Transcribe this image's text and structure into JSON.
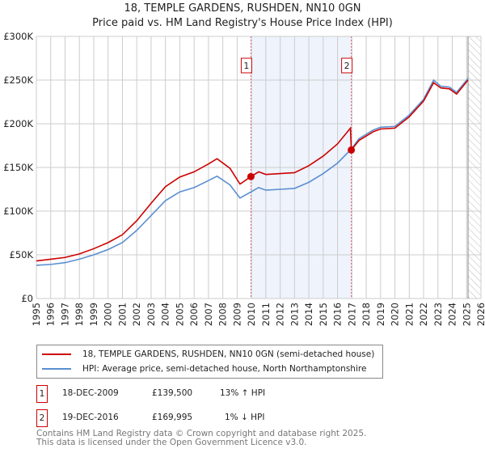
{
  "chart_data": {
    "type": "line",
    "title": "18, TEMPLE GARDENS, RUSHDEN, NN10 0GN",
    "subtitle": "Price paid vs. HM Land Registry's House Price Index (HPI)",
    "xlim": [
      1995,
      2026
    ],
    "ylim": [
      0,
      300000
    ],
    "x_ticks": [
      "1995",
      "1996",
      "1997",
      "1998",
      "1999",
      "2000",
      "2001",
      "2002",
      "2003",
      "2004",
      "2005",
      "2006",
      "2007",
      "2008",
      "2009",
      "2010",
      "2011",
      "2012",
      "2013",
      "2014",
      "2015",
      "2016",
      "2017",
      "2018",
      "2019",
      "2020",
      "2021",
      "2022",
      "2023",
      "2024",
      "2025",
      "2026"
    ],
    "y_ticks": [
      {
        "v": 0,
        "label": "£0"
      },
      {
        "v": 50000,
        "label": "£50K"
      },
      {
        "v": 100000,
        "label": "£100K"
      },
      {
        "v": 150000,
        "label": "£150K"
      },
      {
        "v": 200000,
        "label": "£200K"
      },
      {
        "v": 250000,
        "label": "£250K"
      },
      {
        "v": 300000,
        "label": "£300K"
      }
    ],
    "grid": true,
    "series": [
      {
        "name": "18, TEMPLE GARDENS, RUSHDEN, NN10 0GN (semi-detached house)",
        "color": "#cc0000",
        "x": [
          1995,
          1996,
          1997,
          1998,
          1999,
          2000,
          2001,
          2002,
          2003,
          2004,
          2005,
          2006,
          2007,
          2007.6,
          2008.5,
          2009.2,
          2009.96,
          2010.5,
          2011,
          2012,
          2013,
          2014,
          2015,
          2016,
          2016.9,
          2016.96,
          2017.5,
          2018.5,
          2019,
          2020,
          2021,
          2022,
          2022.7,
          2023.2,
          2023.8,
          2024.3,
          2025.1
        ],
        "y": [
          43000,
          45000,
          47000,
          51000,
          57000,
          64000,
          73000,
          89000,
          109000,
          128000,
          139000,
          145000,
          154000,
          160000,
          149000,
          131000,
          139500,
          145000,
          142000,
          143000,
          144000,
          152000,
          163000,
          177000,
          195000,
          169995,
          181000,
          191000,
          194000,
          195000,
          208000,
          226000,
          247000,
          241000,
          240000,
          234000,
          250000
        ]
      },
      {
        "name": "HPI: Average price, semi-detached house, North Northamptonshire",
        "color": "#5b8fd0",
        "x": [
          1995,
          1996,
          1997,
          1998,
          1999,
          2000,
          2001,
          2002,
          2003,
          2004,
          2005,
          2006,
          2007,
          2007.6,
          2008.5,
          2009.2,
          2009.96,
          2010.5,
          2011,
          2012,
          2013,
          2014,
          2015,
          2016,
          2016.96,
          2017.5,
          2018.5,
          2019,
          2020,
          2021,
          2022,
          2022.7,
          2023.2,
          2023.8,
          2024.3,
          2025.1
        ],
        "y": [
          38000,
          39000,
          41000,
          45000,
          50000,
          56000,
          64000,
          78000,
          95000,
          112000,
          122000,
          127000,
          135000,
          140000,
          130000,
          115000,
          122000,
          127000,
          124000,
          125000,
          126000,
          133000,
          143000,
          155000,
          171000,
          183000,
          193000,
          196000,
          197000,
          210000,
          228000,
          250000,
          243000,
          242000,
          236000,
          252000
        ]
      }
    ],
    "sales": [
      {
        "label": "1",
        "date": "18-DEC-2009",
        "x": 2009.96,
        "price": 139500,
        "price_text": "£139,500",
        "hpi_text": "13% ↑ HPI"
      },
      {
        "label": "2",
        "date": "19-DEC-2016",
        "x": 2016.96,
        "price": 169995,
        "price_text": "£169,995",
        "hpi_text": "1% ↓ HPI"
      }
    ],
    "forecast_start": 2025.1
  },
  "footer": {
    "line1": "Contains HM Land Registry data © Crown copyright and database right 2025.",
    "line2": "This data is licensed under the Open Government Licence v3.0."
  }
}
